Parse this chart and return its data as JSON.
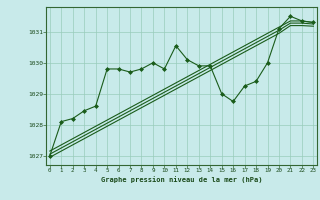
{
  "xlabel": "Graphe pression niveau de la mer (hPa)",
  "bg_color": "#c8eaea",
  "plot_bg_color": "#c8eaea",
  "grid_color": "#99ccbb",
  "line_color": "#1a5c1a",
  "marker_color": "#1a5c1a",
  "x_values": [
    0,
    1,
    2,
    3,
    4,
    5,
    6,
    7,
    8,
    9,
    10,
    11,
    12,
    13,
    14,
    15,
    16,
    17,
    18,
    19,
    20,
    21,
    22,
    23
  ],
  "main_y": [
    1027.0,
    1028.1,
    1028.2,
    1028.45,
    1028.6,
    1029.8,
    1029.8,
    1029.7,
    1029.8,
    1030.0,
    1029.8,
    1030.55,
    1030.1,
    1029.9,
    1029.9,
    1029.0,
    1028.75,
    1029.25,
    1029.4,
    1030.0,
    1031.1,
    1031.5,
    1031.35,
    1031.3
  ],
  "line2_y": [
    1027.15,
    1027.35,
    1027.55,
    1027.75,
    1027.95,
    1028.15,
    1028.35,
    1028.55,
    1028.75,
    1028.95,
    1029.15,
    1029.35,
    1029.55,
    1029.75,
    1029.95,
    1030.15,
    1030.35,
    1030.55,
    1030.75,
    1030.95,
    1031.15,
    1031.35,
    1031.35,
    1031.3
  ],
  "line3_y": [
    1027.05,
    1027.25,
    1027.45,
    1027.65,
    1027.85,
    1028.05,
    1028.25,
    1028.45,
    1028.65,
    1028.85,
    1029.05,
    1029.25,
    1029.45,
    1029.65,
    1029.85,
    1030.05,
    1030.25,
    1030.45,
    1030.65,
    1030.85,
    1031.05,
    1031.28,
    1031.28,
    1031.25
  ],
  "line4_y": [
    1026.95,
    1027.15,
    1027.35,
    1027.55,
    1027.75,
    1027.95,
    1028.15,
    1028.35,
    1028.55,
    1028.75,
    1028.95,
    1029.15,
    1029.35,
    1029.55,
    1029.75,
    1029.95,
    1030.15,
    1030.35,
    1030.55,
    1030.75,
    1030.95,
    1031.2,
    1031.2,
    1031.18
  ],
  "ylim": [
    1026.7,
    1031.8
  ],
  "yticks": [
    1027,
    1028,
    1029,
    1030,
    1031
  ],
  "xticks": [
    0,
    1,
    2,
    3,
    4,
    5,
    6,
    7,
    8,
    9,
    10,
    11,
    12,
    13,
    14,
    15,
    16,
    17,
    18,
    19,
    20,
    21,
    22,
    23
  ]
}
